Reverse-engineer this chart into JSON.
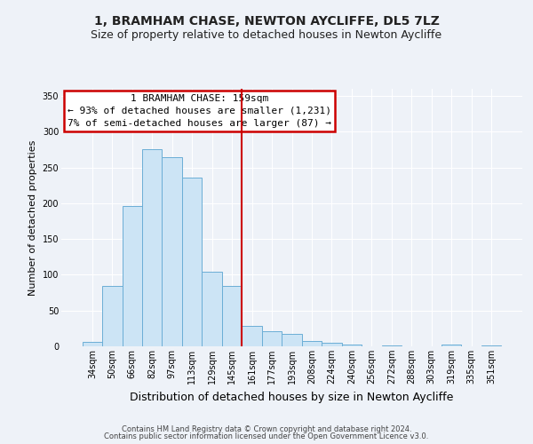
{
  "title": "1, BRAMHAM CHASE, NEWTON AYCLIFFE, DL5 7LZ",
  "subtitle": "Size of property relative to detached houses in Newton Aycliffe",
  "xlabel": "Distribution of detached houses by size in Newton Aycliffe",
  "ylabel": "Number of detached properties",
  "bar_labels": [
    "34sqm",
    "50sqm",
    "66sqm",
    "82sqm",
    "97sqm",
    "113sqm",
    "129sqm",
    "145sqm",
    "161sqm",
    "177sqm",
    "193sqm",
    "208sqm",
    "224sqm",
    "240sqm",
    "256sqm",
    "272sqm",
    "288sqm",
    "303sqm",
    "319sqm",
    "335sqm",
    "351sqm"
  ],
  "bar_values": [
    6,
    84,
    196,
    275,
    265,
    236,
    104,
    84,
    28,
    21,
    17,
    7,
    5,
    2,
    0,
    1,
    0,
    0,
    2,
    0,
    1
  ],
  "bar_color": "#cce4f5",
  "bar_edge_color": "#6baed6",
  "vline_index": 8,
  "vline_color": "#cc0000",
  "annotation_title": "1 BRAMHAM CHASE: 159sqm",
  "annotation_line1": "← 93% of detached houses are smaller (1,231)",
  "annotation_line2": "7% of semi-detached houses are larger (87) →",
  "annotation_box_color": "#cc0000",
  "ylim": [
    0,
    360
  ],
  "yticks": [
    0,
    50,
    100,
    150,
    200,
    250,
    300,
    350
  ],
  "footer1": "Contains HM Land Registry data © Crown copyright and database right 2024.",
  "footer2": "Contains public sector information licensed under the Open Government Licence v3.0.",
  "bg_color": "#eef2f8",
  "title_fontsize": 10,
  "subtitle_fontsize": 9,
  "xlabel_fontsize": 9,
  "ylabel_fontsize": 8,
  "tick_fontsize": 7,
  "footer_fontsize": 6
}
